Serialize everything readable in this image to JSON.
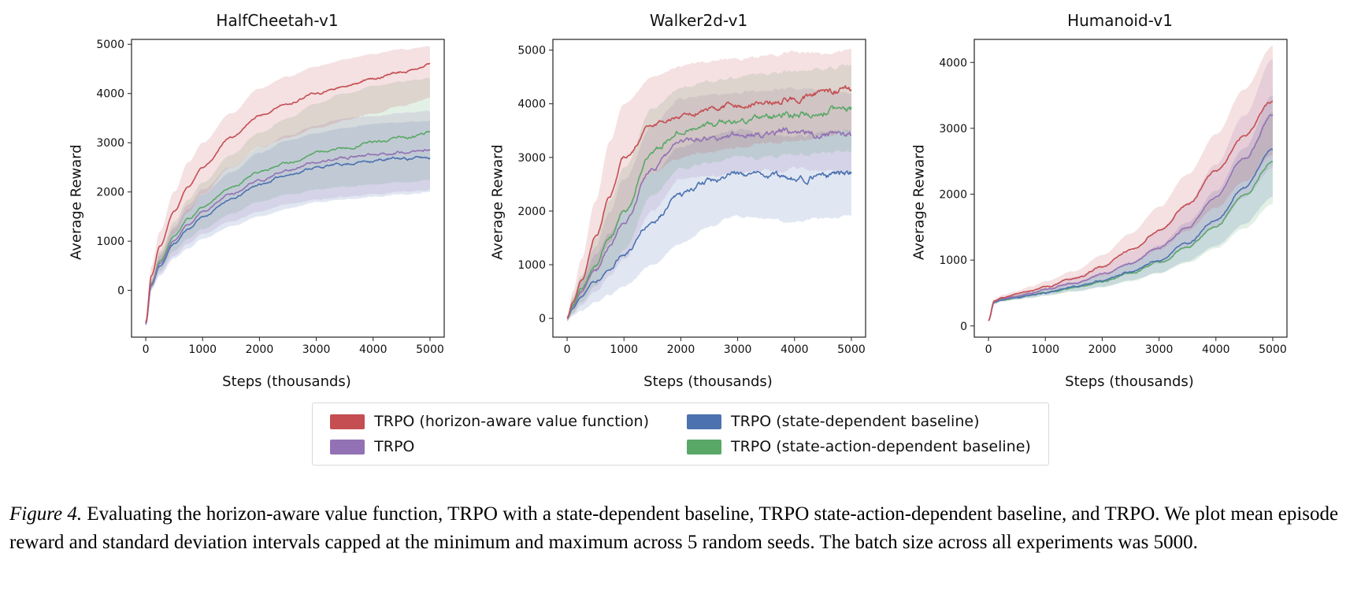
{
  "figure": {
    "caption_label": "Figure 4.",
    "caption_text": "Evaluating the horizon-aware value function, TRPO with a state-dependent baseline, TRPO state-action-dependent baseline, and TRPO. We plot mean episode reward and standard deviation intervals capped at the minimum and maximum across 5 random seeds. The batch size across all experiments was 5000."
  },
  "legend": {
    "items": [
      {
        "label": "TRPO (horizon-aware value function)",
        "color": "#c44e52"
      },
      {
        "label": "TRPO (state-dependent baseline)",
        "color": "#4c72b0"
      },
      {
        "label": "TRPO",
        "color": "#9272b4"
      },
      {
        "label": "TRPO (state-action-dependent baseline)",
        "color": "#5aa868"
      }
    ]
  },
  "chart_data": [
    {
      "type": "line",
      "title": "HalfCheetah-v1",
      "xlabel": "Steps (thousands)",
      "ylabel": "Average Reward",
      "xlim": [
        -250,
        5250
      ],
      "ylim": [
        -950,
        5100
      ],
      "xticks": [
        0,
        1000,
        2000,
        3000,
        4000,
        5000
      ],
      "yticks": [
        0,
        1000,
        2000,
        3000,
        4000,
        5000
      ],
      "x": [
        0,
        100,
        250,
        500,
        750,
        1000,
        1500,
        2000,
        2500,
        3000,
        3500,
        4000,
        4500,
        5000
      ],
      "series": [
        {
          "name": "TRPO (state-dependent baseline)",
          "color": "#4c72b0",
          "noise": 55,
          "mean": [
            -680,
            100,
            500,
            950,
            1250,
            1500,
            1850,
            2150,
            2350,
            2500,
            2570,
            2640,
            2680,
            2700
          ],
          "lo": [
            -730,
            20,
            300,
            650,
            850,
            1050,
            1300,
            1500,
            1650,
            1800,
            1850,
            1900,
            1950,
            2000
          ],
          "hi": [
            -630,
            180,
            700,
            1250,
            1650,
            1950,
            2400,
            2800,
            3050,
            3200,
            3300,
            3380,
            3420,
            3450
          ]
        },
        {
          "name": "TRPO (state-action-dependent baseline)",
          "color": "#5aa868",
          "noise": 55,
          "mean": [
            -670,
            150,
            600,
            1100,
            1450,
            1700,
            2100,
            2400,
            2600,
            2800,
            2900,
            3000,
            3100,
            3200
          ],
          "lo": [
            -720,
            50,
            400,
            800,
            1050,
            1250,
            1550,
            1800,
            1950,
            2050,
            2100,
            2150,
            2200,
            2250
          ],
          "hi": [
            -620,
            250,
            800,
            1400,
            1850,
            2200,
            2750,
            3200,
            3500,
            3800,
            4000,
            4150,
            4250,
            4300
          ]
        },
        {
          "name": "TRPO",
          "color": "#9272b4",
          "noise": 55,
          "mean": [
            -690,
            120,
            550,
            1000,
            1350,
            1600,
            1950,
            2250,
            2450,
            2600,
            2700,
            2750,
            2800,
            2850
          ],
          "lo": [
            -740,
            30,
            350,
            700,
            950,
            1150,
            1400,
            1600,
            1750,
            1850,
            1900,
            1950,
            2000,
            2050
          ],
          "hi": [
            -640,
            210,
            750,
            1300,
            1750,
            2050,
            2500,
            2900,
            3150,
            3350,
            3500,
            3550,
            3600,
            3650
          ]
        },
        {
          "name": "TRPO (horizon-aware value function)",
          "color": "#c44e52",
          "noise": 50,
          "mean": [
            -650,
            300,
            900,
            1600,
            2100,
            2500,
            3100,
            3550,
            3800,
            4000,
            4150,
            4300,
            4450,
            4600
          ],
          "lo": [
            -700,
            100,
            600,
            1150,
            1600,
            1950,
            2500,
            2900,
            3100,
            3300,
            3450,
            3600,
            3750,
            3900
          ],
          "hi": [
            -600,
            500,
            1200,
            2000,
            2600,
            3000,
            3600,
            4100,
            4350,
            4550,
            4700,
            4800,
            4900,
            4950
          ]
        }
      ]
    },
    {
      "type": "line",
      "title": "Walker2d-v1",
      "xlabel": "Steps (thousands)",
      "ylabel": "Average Reward",
      "xlim": [
        -250,
        5250
      ],
      "ylim": [
        -350,
        5200
      ],
      "xticks": [
        0,
        1000,
        2000,
        3000,
        4000,
        5000
      ],
      "yticks": [
        0,
        1000,
        2000,
        3000,
        4000,
        5000
      ],
      "x": [
        0,
        100,
        250,
        500,
        750,
        1000,
        1500,
        2000,
        2500,
        3000,
        3500,
        4000,
        4500,
        5000
      ],
      "series": [
        {
          "name": "TRPO (state-dependent baseline)",
          "color": "#4c72b0",
          "noise": 120,
          "mean": [
            0,
            180,
            400,
            700,
            950,
            1200,
            1800,
            2300,
            2550,
            2700,
            2650,
            2600,
            2650,
            2700
          ],
          "lo": [
            -50,
            50,
            150,
            300,
            450,
            600,
            1000,
            1400,
            1700,
            1900,
            1850,
            1800,
            1850,
            1900
          ],
          "hi": [
            50,
            320,
            700,
            1200,
            1600,
            2000,
            2700,
            3200,
            3400,
            3500,
            3450,
            3400,
            3450,
            3500
          ]
        },
        {
          "name": "TRPO",
          "color": "#9272b4",
          "noise": 130,
          "mean": [
            0,
            220,
            500,
            900,
            1350,
            1800,
            2800,
            3300,
            3350,
            3400,
            3450,
            3500,
            3450,
            3400
          ],
          "lo": [
            -50,
            80,
            250,
            500,
            800,
            1100,
            2000,
            2600,
            2650,
            2700,
            2750,
            2800,
            2750,
            2700
          ],
          "hi": [
            50,
            360,
            750,
            1350,
            2000,
            2600,
            3600,
            4100,
            4150,
            4200,
            4250,
            4300,
            4250,
            4200
          ]
        },
        {
          "name": "TRPO (state-action-dependent baseline)",
          "color": "#5aa868",
          "noise": 130,
          "mean": [
            0,
            250,
            550,
            1000,
            1500,
            2000,
            3100,
            3500,
            3600,
            3700,
            3750,
            3800,
            3850,
            3900
          ],
          "lo": [
            -50,
            100,
            300,
            600,
            900,
            1300,
            2300,
            2800,
            2900,
            3000,
            3000,
            3050,
            3100,
            3100
          ],
          "hi": [
            50,
            400,
            800,
            1500,
            2200,
            2800,
            3900,
            4300,
            4400,
            4500,
            4550,
            4600,
            4650,
            4700
          ]
        },
        {
          "name": "TRPO (horizon-aware value function)",
          "color": "#c44e52",
          "noise": 120,
          "mean": [
            0,
            300,
            700,
            1500,
            2300,
            3000,
            3600,
            3800,
            3900,
            4000,
            4050,
            4100,
            4200,
            4300
          ],
          "lo": [
            -50,
            150,
            400,
            900,
            1400,
            2000,
            2700,
            3000,
            3100,
            3200,
            3250,
            3300,
            3400,
            3500
          ],
          "hi": [
            50,
            500,
            1100,
            2200,
            3300,
            4000,
            4500,
            4700,
            4800,
            4850,
            4900,
            4950,
            4950,
            5000
          ]
        }
      ]
    },
    {
      "type": "line",
      "title": "Humanoid-v1",
      "xlabel": "Steps (thousands)",
      "ylabel": "Average Reward",
      "xlim": [
        -250,
        5250
      ],
      "ylim": [
        -170,
        4350
      ],
      "xticks": [
        0,
        1000,
        2000,
        3000,
        4000,
        5000
      ],
      "yticks": [
        0,
        1000,
        2000,
        3000,
        4000
      ],
      "x": [
        0,
        100,
        250,
        500,
        750,
        1000,
        1500,
        2000,
        2500,
        3000,
        3500,
        4000,
        4500,
        5000
      ],
      "series": [
        {
          "name": "TRPO (state-action-dependent baseline)",
          "color": "#5aa868",
          "noise": 34,
          "mean": [
            80,
            355,
            395,
            430,
            465,
            505,
            580,
            675,
            800,
            970,
            1200,
            1520,
            1980,
            2500
          ],
          "lo": [
            70,
            330,
            370,
            398,
            425,
            458,
            518,
            590,
            680,
            800,
            960,
            1180,
            1480,
            1850
          ],
          "hi": [
            90,
            380,
            425,
            465,
            510,
            555,
            650,
            770,
            940,
            1170,
            1490,
            1930,
            2550,
            3250
          ]
        },
        {
          "name": "TRPO (state-dependent baseline)",
          "color": "#4c72b0",
          "noise": 34,
          "mean": [
            80,
            360,
            400,
            435,
            470,
            510,
            590,
            690,
            820,
            1000,
            1250,
            1600,
            2100,
            2700
          ],
          "lo": [
            70,
            335,
            375,
            400,
            430,
            465,
            525,
            600,
            690,
            810,
            980,
            1220,
            1550,
            1950
          ],
          "hi": [
            90,
            385,
            430,
            475,
            515,
            565,
            665,
            790,
            970,
            1220,
            1570,
            2050,
            2700,
            3500
          ]
        },
        {
          "name": "TRPO",
          "color": "#9272b4",
          "noise": 36,
          "mean": [
            80,
            370,
            415,
            455,
            500,
            550,
            650,
            780,
            950,
            1180,
            1500,
            1950,
            2550,
            3200
          ],
          "lo": [
            70,
            345,
            390,
            420,
            455,
            495,
            570,
            670,
            790,
            950,
            1180,
            1500,
            1950,
            2400
          ],
          "hi": [
            90,
            395,
            445,
            495,
            550,
            610,
            740,
            900,
            1130,
            1450,
            1870,
            2450,
            3200,
            4050
          ]
        },
        {
          "name": "TRPO (horizon-aware value function)",
          "color": "#c44e52",
          "noise": 36,
          "mean": [
            80,
            380,
            430,
            480,
            530,
            600,
            720,
            900,
            1150,
            1450,
            1850,
            2350,
            2900,
            3400
          ],
          "lo": [
            70,
            350,
            400,
            440,
            480,
            540,
            630,
            760,
            950,
            1150,
            1450,
            1800,
            2200,
            2600
          ],
          "hi": [
            90,
            410,
            470,
            530,
            600,
            680,
            830,
            1070,
            1400,
            1800,
            2300,
            2900,
            3600,
            4250
          ]
        }
      ]
    }
  ]
}
